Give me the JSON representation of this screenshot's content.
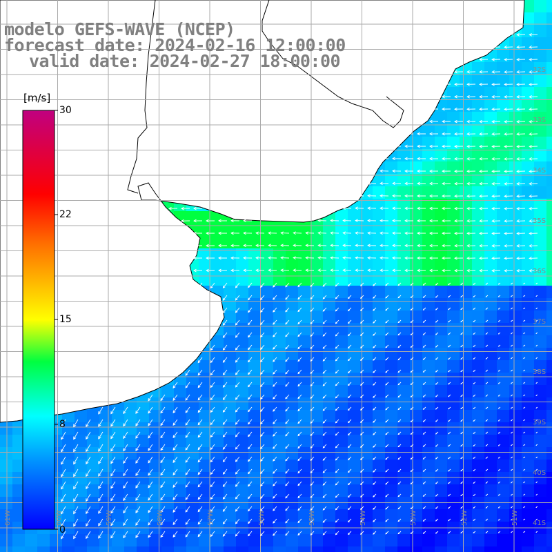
{
  "title": {
    "line1": "modelo GEFS-WAVE (NCEP)",
    "line2": "forecast date: 2024-02-16 12:00:00",
    "line3": "valid date: 2024-02-27 18:00:00"
  },
  "colorbar": {
    "unit": "[m/s]",
    "ticks": [
      "30",
      "22",
      "15",
      "8",
      "0"
    ],
    "range": [
      0,
      30
    ],
    "colors": [
      "#0000ff",
      "#00a0ff",
      "#00ffff",
      "#00ff00",
      "#ffff00",
      "#ff8000",
      "#ff0000",
      "#c00080"
    ]
  },
  "map": {
    "lat_labels": [
      "32S",
      "33S",
      "34S",
      "35S",
      "36S",
      "37S",
      "38S",
      "39S",
      "40S",
      "41S"
    ],
    "lon_labels": [
      "61W",
      "60W",
      "59W",
      "58W",
      "57W",
      "56W",
      "55W",
      "54W",
      "53W",
      "52W",
      "51W"
    ],
    "land_color": "#ffffff",
    "coast_color": "#000000",
    "grid_color": "#aaaaaa",
    "arrow_color": "#ffffff"
  }
}
